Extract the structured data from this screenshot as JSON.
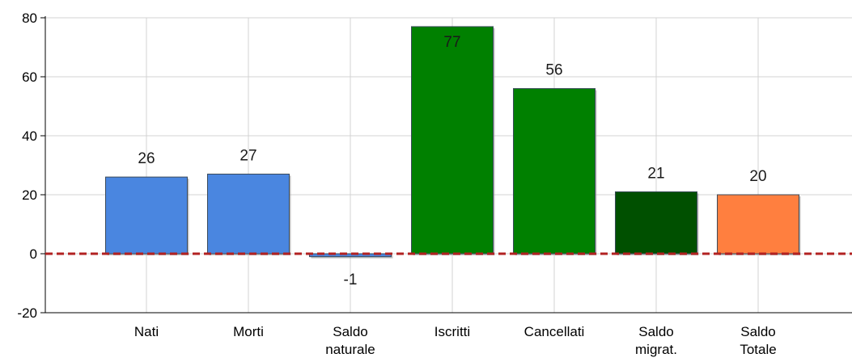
{
  "chart_data": {
    "type": "bar",
    "title": "",
    "xlabel": "",
    "ylabel": "",
    "ylim": [
      -20,
      80
    ],
    "yticks": [
      80,
      60,
      40,
      20,
      0,
      -20
    ],
    "grid": true,
    "legend": "none",
    "reference_line": {
      "value": 0,
      "color": "#b22222",
      "style": "dashed"
    },
    "categories": [
      {
        "label": [
          "Nati"
        ],
        "value": 26,
        "value_label": "26",
        "color": "#4a86e0"
      },
      {
        "label": [
          "Morti"
        ],
        "value": 27,
        "value_label": "27",
        "color": "#4a86e0"
      },
      {
        "label": [
          "Saldo",
          "naturale"
        ],
        "value": -1,
        "value_label": "-1",
        "color": "#4a86e0"
      },
      {
        "label": [
          "Iscritti"
        ],
        "value": 77,
        "value_label": "77",
        "color": "#008000"
      },
      {
        "label": [
          "Cancellati"
        ],
        "value": 56,
        "value_label": "56",
        "color": "#008000"
      },
      {
        "label": [
          "Saldo",
          "migrat."
        ],
        "value": 21,
        "value_label": "21",
        "color": "#005000"
      },
      {
        "label": [
          "Saldo",
          "Totale"
        ],
        "value": 20,
        "value_label": "20",
        "color": "#ff7f3f"
      }
    ]
  }
}
